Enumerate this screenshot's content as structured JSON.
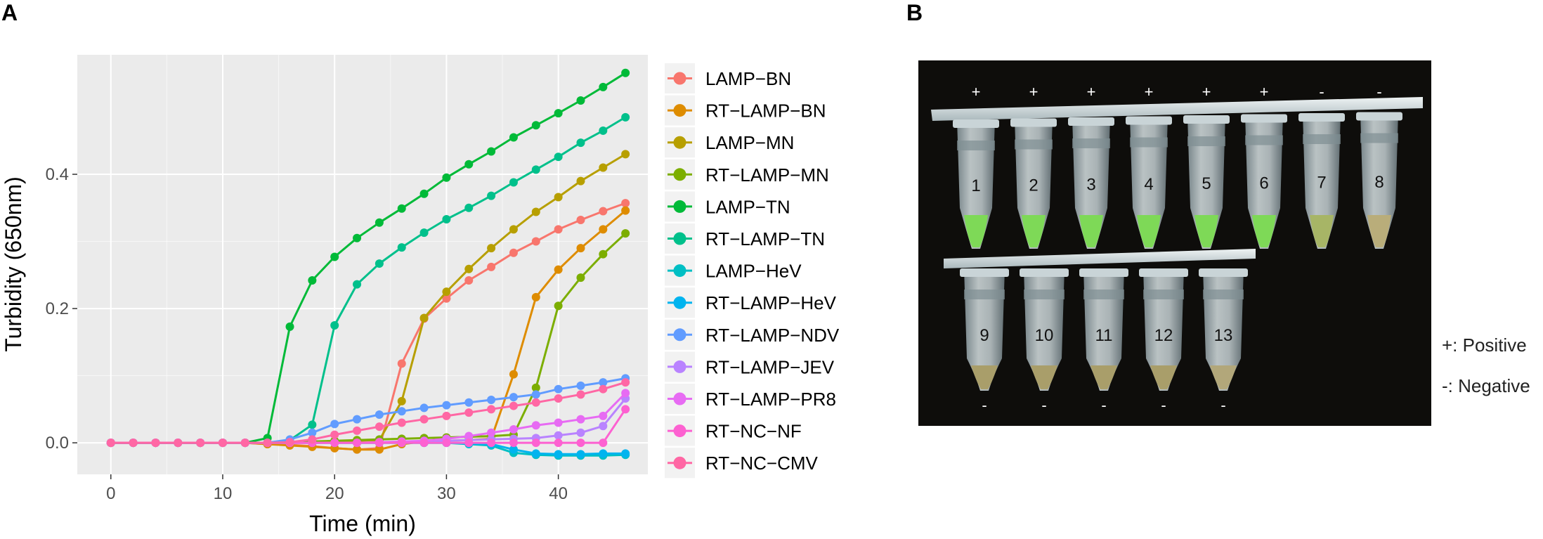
{
  "panel_a_label": "A",
  "panel_b_label": "B",
  "chart_data": {
    "type": "line",
    "xlabel": "Time (min)",
    "ylabel": "Turbidity (650nm)",
    "xlim": [
      -3,
      48
    ],
    "ylim": [
      -0.047,
      0.578
    ],
    "x_ticks": [
      0,
      10,
      20,
      30,
      40
    ],
    "x_tick_labels": [
      "0",
      "10",
      "20",
      "30",
      "40"
    ],
    "y_ticks": [
      0.0,
      0.2,
      0.4
    ],
    "y_tick_labels": [
      "0.0",
      "0.2",
      "0.4"
    ],
    "grid": true,
    "legend_position": "right",
    "x": [
      0,
      2,
      4,
      6,
      8,
      10,
      12,
      14,
      16,
      18,
      20,
      22,
      24,
      26,
      28,
      30,
      32,
      34,
      36,
      38,
      40,
      42,
      44,
      46
    ],
    "series": [
      {
        "name": "LAMP−BN",
        "color": "#F8766D",
        "values": [
          0,
          0,
          0,
          0,
          0,
          0,
          0,
          -0.002,
          -0.003,
          -0.005,
          -0.008,
          -0.01,
          -0.008,
          0.118,
          0.185,
          0.215,
          0.242,
          0.262,
          0.283,
          0.3,
          0.318,
          0.332,
          0.345,
          0.357
        ]
      },
      {
        "name": "RT−LAMP−BN",
        "color": "#DE8C00",
        "values": [
          0,
          0,
          0,
          0,
          0,
          0,
          0,
          -0.002,
          -0.004,
          -0.006,
          -0.008,
          -0.01,
          -0.01,
          -0.002,
          0.002,
          0.003,
          0.004,
          0.006,
          0.102,
          0.217,
          0.258,
          0.29,
          0.318,
          0.346
        ]
      },
      {
        "name": "LAMP−MN",
        "color": "#B79F00",
        "values": [
          0,
          0,
          0,
          0,
          0,
          0,
          0,
          0,
          0,
          0.001,
          0.002,
          0.003,
          0.004,
          0.062,
          0.186,
          0.225,
          0.259,
          0.29,
          0.318,
          0.344,
          0.366,
          0.39,
          0.41,
          0.43
        ]
      },
      {
        "name": "RT−LAMP−MN",
        "color": "#7CAE00",
        "values": [
          0,
          0,
          0,
          0,
          0,
          0,
          0,
          0,
          0.001,
          0.002,
          0.003,
          0.004,
          0.005,
          0.006,
          0.007,
          0.008,
          0.009,
          0.01,
          0.012,
          0.082,
          0.204,
          0.246,
          0.281,
          0.312
        ]
      },
      {
        "name": "LAMP−TN",
        "color": "#00BA38",
        "values": [
          0,
          0,
          0,
          0,
          0,
          0,
          0,
          0.007,
          0.173,
          0.242,
          0.277,
          0.305,
          0.328,
          0.349,
          0.371,
          0.395,
          0.415,
          0.434,
          0.455,
          0.473,
          0.491,
          0.51,
          0.53,
          0.551
        ]
      },
      {
        "name": "RT−LAMP−TN",
        "color": "#00C08B",
        "values": [
          0,
          0,
          0,
          0,
          0,
          0,
          0,
          0,
          0.004,
          0.027,
          0.175,
          0.236,
          0.267,
          0.291,
          0.313,
          0.333,
          0.35,
          0.368,
          0.388,
          0.407,
          0.426,
          0.447,
          0.465,
          0.485
        ]
      },
      {
        "name": "LAMP−HeV",
        "color": "#00BFC4",
        "values": [
          0,
          0,
          0,
          0,
          0,
          0,
          0,
          0,
          0,
          0,
          0,
          0,
          0,
          0,
          0,
          0,
          -0.002,
          -0.004,
          -0.015,
          -0.018,
          -0.019,
          -0.019,
          -0.019,
          -0.018
        ]
      },
      {
        "name": "RT−LAMP−HeV",
        "color": "#00B4EF",
        "values": [
          0,
          0,
          0,
          0,
          0,
          0,
          0,
          0,
          0,
          0,
          0,
          0,
          0,
          0,
          0,
          0,
          -0.001,
          -0.002,
          -0.01,
          -0.016,
          -0.017,
          -0.017,
          -0.016,
          -0.016
        ]
      },
      {
        "name": "RT−LAMP−NDV",
        "color": "#619CFF",
        "values": [
          0,
          0,
          0,
          0,
          0,
          0,
          0,
          0,
          0.005,
          0.015,
          0.028,
          0.035,
          0.042,
          0.047,
          0.052,
          0.056,
          0.06,
          0.064,
          0.068,
          0.072,
          0.08,
          0.085,
          0.09,
          0.096
        ]
      },
      {
        "name": "RT−LAMP−JEV",
        "color": "#B983FF",
        "values": [
          0,
          0,
          0,
          0,
          0,
          0,
          0,
          0,
          0,
          0,
          0,
          0,
          0,
          0.001,
          0.002,
          0.003,
          0.004,
          0.005,
          0.006,
          0.007,
          0.011,
          0.015,
          0.025,
          0.066
        ]
      },
      {
        "name": "RT−LAMP−PR8",
        "color": "#E76BF3",
        "values": [
          0,
          0,
          0,
          0,
          0,
          0,
          0,
          0,
          0,
          0,
          0,
          0,
          0.001,
          0.002,
          0.003,
          0.006,
          0.01,
          0.015,
          0.02,
          0.026,
          0.03,
          0.035,
          0.04,
          0.074
        ]
      },
      {
        "name": "RT−NC−NF",
        "color": "#FD61D1",
        "values": [
          0,
          0,
          0,
          0,
          0,
          0,
          0,
          0,
          0,
          0,
          0,
          0,
          0,
          0,
          0,
          0,
          0,
          0,
          0,
          0,
          0,
          0,
          0,
          0.05
        ]
      },
      {
        "name": "RT−NC−CMV",
        "color": "#FF67A4",
        "values": [
          0,
          0,
          0,
          0,
          0,
          0,
          0,
          0,
          0.001,
          0.005,
          0.012,
          0.018,
          0.024,
          0.03,
          0.035,
          0.04,
          0.045,
          0.05,
          0.055,
          0.06,
          0.066,
          0.072,
          0.08,
          0.09
        ]
      }
    ],
    "plot_background": "#EBEBEB",
    "grid_color": "#FFFFFF",
    "axis_text_color": "#4D4D4D"
  },
  "gel_photo": {
    "top_tubes": [
      {
        "number": "1",
        "sign": "+",
        "color": "#7ed957"
      },
      {
        "number": "2",
        "sign": "+",
        "color": "#7ed957"
      },
      {
        "number": "3",
        "sign": "+",
        "color": "#7ed957"
      },
      {
        "number": "4",
        "sign": "+",
        "color": "#7ed957"
      },
      {
        "number": "5",
        "sign": "+",
        "color": "#7ed957"
      },
      {
        "number": "6",
        "sign": "+",
        "color": "#7ed957"
      },
      {
        "number": "7",
        "sign": "-",
        "color": "#a7b566"
      },
      {
        "number": "8",
        "sign": "-",
        "color": "#b9ad7a"
      }
    ],
    "bottom_tubes": [
      {
        "number": "9",
        "sign": "-",
        "color": "#a99e6a"
      },
      {
        "number": "10",
        "sign": "-",
        "color": "#a99e6a"
      },
      {
        "number": "11",
        "sign": "-",
        "color": "#a99e6a"
      },
      {
        "number": "12",
        "sign": "-",
        "color": "#a99e6a"
      },
      {
        "number": "13",
        "sign": "-",
        "color": "#b2a77a"
      }
    ]
  },
  "side_legend": {
    "positive": "+: Positive",
    "negative": "-: Negative"
  }
}
